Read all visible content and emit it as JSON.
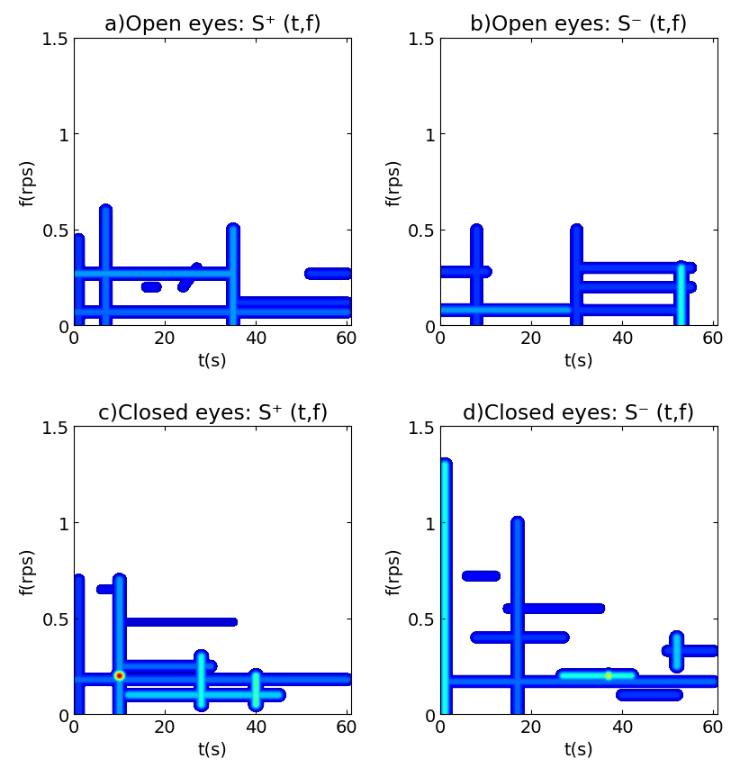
{
  "chart_data": [
    {
      "type": "contour",
      "title": "a)Open eyes: S⁺ (t,f)",
      "x_label": "t(s)",
      "y_label": "f(rps)",
      "xlim": [
        0,
        61
      ],
      "xticks": [
        0,
        20,
        40,
        60
      ],
      "ylim": [
        0,
        1.5
      ],
      "yticks": [
        0,
        0.5,
        1,
        1.5
      ],
      "zlim": [
        0,
        1
      ],
      "ridges": [
        {
          "t": [
            0,
            35
          ],
          "f": [
            0.27,
            0.27
          ],
          "amplitude": 0.3
        },
        {
          "t": [
            0,
            60
          ],
          "f": [
            0.07,
            0.07
          ],
          "amplitude": 0.25
        },
        {
          "t": [
            1,
            1
          ],
          "f": [
            0.0,
            0.45
          ],
          "amplitude": 0.2
        },
        {
          "t": [
            7,
            7
          ],
          "f": [
            0.0,
            0.6
          ],
          "amplitude": 0.25
        },
        {
          "t": [
            35,
            35
          ],
          "f": [
            0.0,
            0.5
          ],
          "amplitude": 0.3
        },
        {
          "t": [
            35,
            60
          ],
          "f": [
            0.12,
            0.12
          ],
          "amplitude": 0.18
        },
        {
          "t": [
            52,
            60
          ],
          "f": [
            0.27,
            0.27
          ],
          "amplitude": 0.2
        },
        {
          "t": [
            16,
            18
          ],
          "f": [
            0.2,
            0.2
          ],
          "amplitude": 0.15
        },
        {
          "t": [
            24,
            27
          ],
          "f": [
            0.2,
            0.3
          ],
          "amplitude": 0.15
        }
      ]
    },
    {
      "type": "contour",
      "title": "b)Open eyes: S⁻ (t,f)",
      "x_label": "t(s)",
      "y_label": "f(rps)",
      "xlim": [
        0,
        61
      ],
      "xticks": [
        0,
        20,
        40,
        60
      ],
      "ylim": [
        0,
        1.5
      ],
      "yticks": [
        0,
        0.5,
        1,
        1.5
      ],
      "zlim": [
        0,
        1
      ],
      "ridges": [
        {
          "t": [
            0,
            28
          ],
          "f": [
            0.08,
            0.08
          ],
          "amplitude": 0.3
        },
        {
          "t": [
            0,
            10
          ],
          "f": [
            0.28,
            0.28
          ],
          "amplitude": 0.2
        },
        {
          "t": [
            8,
            8
          ],
          "f": [
            0.0,
            0.5
          ],
          "amplitude": 0.2
        },
        {
          "t": [
            30,
            55
          ],
          "f": [
            0.3,
            0.3
          ],
          "amplitude": 0.2
        },
        {
          "t": [
            30,
            55
          ],
          "f": [
            0.2,
            0.2
          ],
          "amplitude": 0.2
        },
        {
          "t": [
            30,
            52
          ],
          "f": [
            0.08,
            0.08
          ],
          "amplitude": 0.2
        },
        {
          "t": [
            30,
            30
          ],
          "f": [
            0.0,
            0.5
          ],
          "amplitude": 0.2
        },
        {
          "t": [
            53,
            53
          ],
          "f": [
            0.0,
            0.3
          ],
          "amplitude": 0.4
        }
      ]
    },
    {
      "type": "contour",
      "title": "c)Closed eyes: S⁺ (t,f)",
      "x_label": "t(s)",
      "y_label": "f(rps)",
      "xlim": [
        0,
        61
      ],
      "xticks": [
        0,
        20,
        40,
        60
      ],
      "ylim": [
        0,
        1.5
      ],
      "yticks": [
        0,
        0.5,
        1,
        1.5
      ],
      "zlim": [
        0,
        1
      ],
      "ridges": [
        {
          "t": [
            10,
            10
          ],
          "f": [
            0.2,
            0.2
          ],
          "amplitude": 1.0
        },
        {
          "t": [
            10,
            10
          ],
          "f": [
            0.0,
            0.7
          ],
          "amplitude": 0.3
        },
        {
          "t": [
            0,
            60
          ],
          "f": [
            0.18,
            0.18
          ],
          "amplitude": 0.25
        },
        {
          "t": [
            12,
            45
          ],
          "f": [
            0.1,
            0.1
          ],
          "amplitude": 0.35
        },
        {
          "t": [
            10,
            30
          ],
          "f": [
            0.25,
            0.25
          ],
          "amplitude": 0.25
        },
        {
          "t": [
            28,
            28
          ],
          "f": [
            0.05,
            0.3
          ],
          "amplitude": 0.4
        },
        {
          "t": [
            40,
            40
          ],
          "f": [
            0.05,
            0.2
          ],
          "amplitude": 0.45
        },
        {
          "t": [
            12,
            35
          ],
          "f": [
            0.48,
            0.48
          ],
          "amplitude": 0.1
        },
        {
          "t": [
            1,
            1
          ],
          "f": [
            0.0,
            0.7
          ],
          "amplitude": 0.2
        },
        {
          "t": [
            6,
            8
          ],
          "f": [
            0.65,
            0.65
          ],
          "amplitude": 0.12
        }
      ]
    },
    {
      "type": "contour",
      "title": "d)Closed eyes: S⁻ (t,f)",
      "x_label": "t(s)",
      "y_label": "f(rps)",
      "xlim": [
        0,
        61
      ],
      "xticks": [
        0,
        20,
        40,
        60
      ],
      "ylim": [
        0,
        1.5
      ],
      "yticks": [
        0,
        0.5,
        1,
        1.5
      ],
      "zlim": [
        0,
        1
      ],
      "ridges": [
        {
          "t": [
            1,
            1
          ],
          "f": [
            0.0,
            1.3
          ],
          "amplitude": 0.4
        },
        {
          "t": [
            0,
            60
          ],
          "f": [
            0.17,
            0.17
          ],
          "amplitude": 0.25
        },
        {
          "t": [
            27,
            42
          ],
          "f": [
            0.2,
            0.2
          ],
          "amplitude": 0.4
        },
        {
          "t": [
            37,
            37
          ],
          "f": [
            0.2,
            0.2
          ],
          "amplitude": 0.65
        },
        {
          "t": [
            8,
            27
          ],
          "f": [
            0.4,
            0.4
          ],
          "amplitude": 0.2
        },
        {
          "t": [
            15,
            35
          ],
          "f": [
            0.55,
            0.55
          ],
          "amplitude": 0.15
        },
        {
          "t": [
            6,
            12
          ],
          "f": [
            0.72,
            0.72
          ],
          "amplitude": 0.15
        },
        {
          "t": [
            40,
            52
          ],
          "f": [
            0.1,
            0.1
          ],
          "amplitude": 0.2
        },
        {
          "t": [
            52,
            52
          ],
          "f": [
            0.25,
            0.4
          ],
          "amplitude": 0.35
        },
        {
          "t": [
            50,
            60
          ],
          "f": [
            0.33,
            0.33
          ],
          "amplitude": 0.2
        },
        {
          "t": [
            17,
            17
          ],
          "f": [
            0.0,
            1.0
          ],
          "amplitude": 0.25
        }
      ]
    }
  ]
}
